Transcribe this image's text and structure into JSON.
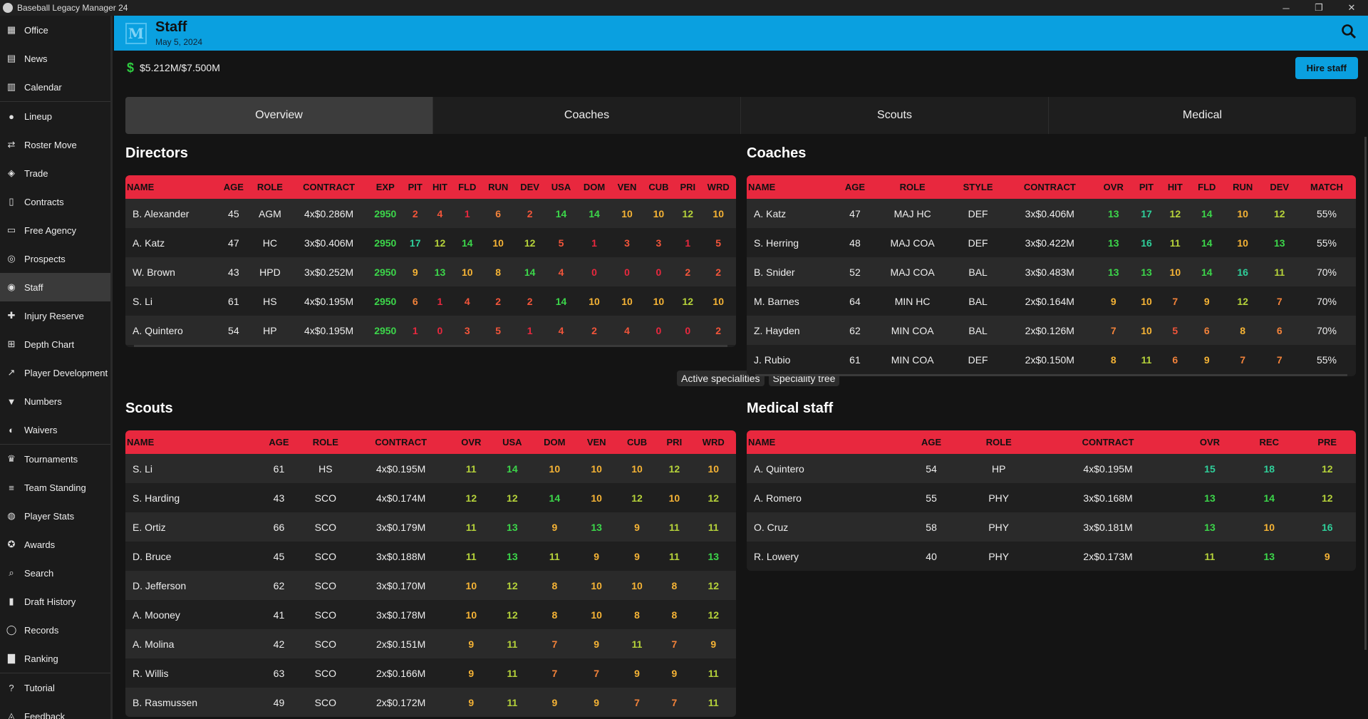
{
  "window": {
    "title": "Baseball Legacy Manager 24",
    "minimize": "─",
    "restore": "❐",
    "close": "✕"
  },
  "sidebar": {
    "items": [
      {
        "label": "Office",
        "icon": "building-icon"
      },
      {
        "label": "News",
        "icon": "newspaper-icon"
      },
      {
        "label": "Calendar",
        "icon": "calendar-icon"
      },
      {
        "label": "Lineup",
        "icon": "users-icon"
      },
      {
        "label": "Roster Move",
        "icon": "swap-icon"
      },
      {
        "label": "Trade",
        "icon": "handshake-icon"
      },
      {
        "label": "Contracts",
        "icon": "document-icon"
      },
      {
        "label": "Free Agency",
        "icon": "id-card-icon"
      },
      {
        "label": "Prospects",
        "icon": "binoculars-icon"
      },
      {
        "label": "Staff",
        "icon": "staff-icon"
      },
      {
        "label": "Injury Reserve",
        "icon": "injury-icon"
      },
      {
        "label": "Depth Chart",
        "icon": "sitemap-icon"
      },
      {
        "label": "Player Development",
        "icon": "trend-chart-icon"
      },
      {
        "label": "Numbers",
        "icon": "jersey-icon"
      },
      {
        "label": "Waivers",
        "icon": "user-minus-icon"
      },
      {
        "label": "Tournaments",
        "icon": "trophy-icon"
      },
      {
        "label": "Team Standing",
        "icon": "list-icon"
      },
      {
        "label": "Player Stats",
        "icon": "baseball-icon"
      },
      {
        "label": "Awards",
        "icon": "award-icon"
      },
      {
        "label": "Search",
        "icon": "search-icon"
      },
      {
        "label": "Draft History",
        "icon": "book-icon"
      },
      {
        "label": "Records",
        "icon": "globe-icon"
      },
      {
        "label": "Ranking",
        "icon": "bar-chart-icon"
      },
      {
        "label": "Tutorial",
        "icon": "question-icon"
      },
      {
        "label": "Feedback",
        "icon": "comment-icon"
      }
    ]
  },
  "header": {
    "logo": "M",
    "title": "Staff",
    "date": "May 5, 2024"
  },
  "budget": {
    "symbol": "$",
    "amount": "$5.212M/$7.500M"
  },
  "hire_button": "Hire staff",
  "tabs": [
    "Overview",
    "Coaches",
    "Scouts",
    "Medical"
  ],
  "directors": {
    "title": "Directors",
    "columns": [
      "NAME",
      "AGE",
      "ROLE",
      "CONTRACT",
      "EXP",
      "PIT",
      "HIT",
      "FLD",
      "RUN",
      "DEV",
      "USA",
      "DOM",
      "VEN",
      "CUB",
      "PRI",
      "WRD"
    ],
    "rows": [
      [
        "B. Alexander",
        "45",
        "AGM",
        "4x$0.286M",
        "2950",
        "2",
        "4",
        "1",
        "6",
        "2",
        "14",
        "14",
        "10",
        "10",
        "12",
        "10"
      ],
      [
        "A. Katz",
        "47",
        "HC",
        "3x$0.406M",
        "2950",
        "17",
        "12",
        "14",
        "10",
        "12",
        "5",
        "1",
        "3",
        "3",
        "1",
        "5"
      ],
      [
        "W. Brown",
        "43",
        "HPD",
        "3x$0.252M",
        "2950",
        "9",
        "13",
        "10",
        "8",
        "14",
        "4",
        "0",
        "0",
        "0",
        "2",
        "2"
      ],
      [
        "S. Li",
        "61",
        "HS",
        "4x$0.195M",
        "2950",
        "6",
        "1",
        "4",
        "2",
        "2",
        "14",
        "10",
        "10",
        "10",
        "12",
        "10"
      ],
      [
        "A. Quintero",
        "54",
        "HP",
        "4x$0.195M",
        "2950",
        "1",
        "0",
        "3",
        "5",
        "1",
        "4",
        "2",
        "4",
        "0",
        "0",
        "2"
      ]
    ],
    "buttons": [
      "Active specialities",
      "Speciality tree"
    ]
  },
  "coaches": {
    "title": "Coaches",
    "columns": [
      "NAME",
      "AGE",
      "ROLE",
      "STYLE",
      "CONTRACT",
      "OVR",
      "PIT",
      "HIT",
      "FLD",
      "RUN",
      "DEV",
      "MATCH"
    ],
    "rows": [
      [
        "A. Katz",
        "47",
        "MAJ HC",
        "DEF",
        "3x$0.406M",
        "13",
        "17",
        "12",
        "14",
        "10",
        "12",
        "55%"
      ],
      [
        "S. Herring",
        "48",
        "MAJ COA",
        "DEF",
        "3x$0.422M",
        "13",
        "16",
        "11",
        "14",
        "10",
        "13",
        "55%"
      ],
      [
        "B. Snider",
        "52",
        "MAJ COA",
        "BAL",
        "3x$0.483M",
        "13",
        "13",
        "10",
        "14",
        "16",
        "11",
        "70%"
      ],
      [
        "M. Barnes",
        "64",
        "MIN HC",
        "BAL",
        "2x$0.164M",
        "9",
        "10",
        "7",
        "9",
        "12",
        "7",
        "70%"
      ],
      [
        "Z. Hayden",
        "62",
        "MIN COA",
        "BAL",
        "2x$0.126M",
        "7",
        "10",
        "5",
        "6",
        "8",
        "6",
        "70%"
      ],
      [
        "J. Rubio",
        "61",
        "MIN COA",
        "DEF",
        "2x$0.150M",
        "8",
        "11",
        "6",
        "9",
        "7",
        "7",
        "55%"
      ]
    ]
  },
  "scouts": {
    "title": "Scouts",
    "columns": [
      "NAME",
      "AGE",
      "ROLE",
      "CONTRACT",
      "OVR",
      "USA",
      "DOM",
      "VEN",
      "CUB",
      "PRI",
      "WRD"
    ],
    "rows": [
      [
        "S. Li",
        "61",
        "HS",
        "4x$0.195M",
        "11",
        "14",
        "10",
        "10",
        "10",
        "12",
        "10"
      ],
      [
        "S. Harding",
        "43",
        "SCO",
        "4x$0.174M",
        "12",
        "12",
        "14",
        "10",
        "12",
        "10",
        "12"
      ],
      [
        "E. Ortiz",
        "66",
        "SCO",
        "3x$0.179M",
        "11",
        "13",
        "9",
        "13",
        "9",
        "11",
        "11"
      ],
      [
        "D. Bruce",
        "45",
        "SCO",
        "3x$0.188M",
        "11",
        "13",
        "11",
        "9",
        "9",
        "11",
        "13"
      ],
      [
        "D. Jefferson",
        "62",
        "SCO",
        "3x$0.170M",
        "10",
        "12",
        "8",
        "10",
        "10",
        "8",
        "12"
      ],
      [
        "A. Mooney",
        "41",
        "SCO",
        "3x$0.178M",
        "10",
        "12",
        "8",
        "10",
        "8",
        "8",
        "12"
      ],
      [
        "A. Molina",
        "42",
        "SCO",
        "2x$0.151M",
        "9",
        "11",
        "7",
        "9",
        "11",
        "7",
        "9"
      ],
      [
        "R. Willis",
        "63",
        "SCO",
        "2x$0.166M",
        "9",
        "11",
        "7",
        "7",
        "9",
        "9",
        "11"
      ],
      [
        "B. Rasmussen",
        "49",
        "SCO",
        "2x$0.172M",
        "9",
        "11",
        "9",
        "9",
        "7",
        "7",
        "11"
      ]
    ]
  },
  "medical": {
    "title": "Medical staff",
    "columns": [
      "NAME",
      "AGE",
      "ROLE",
      "CONTRACT",
      "OVR",
      "REC",
      "PRE"
    ],
    "rows": [
      [
        "A. Quintero",
        "54",
        "HP",
        "4x$0.195M",
        "15",
        "18",
        "12"
      ],
      [
        "A. Romero",
        "55",
        "PHY",
        "3x$0.168M",
        "13",
        "14",
        "12"
      ],
      [
        "O. Cruz",
        "58",
        "PHY",
        "3x$0.181M",
        "13",
        "10",
        "16"
      ],
      [
        "R. Lowery",
        "40",
        "PHY",
        "2x$0.173M",
        "11",
        "13",
        "9"
      ]
    ]
  }
}
